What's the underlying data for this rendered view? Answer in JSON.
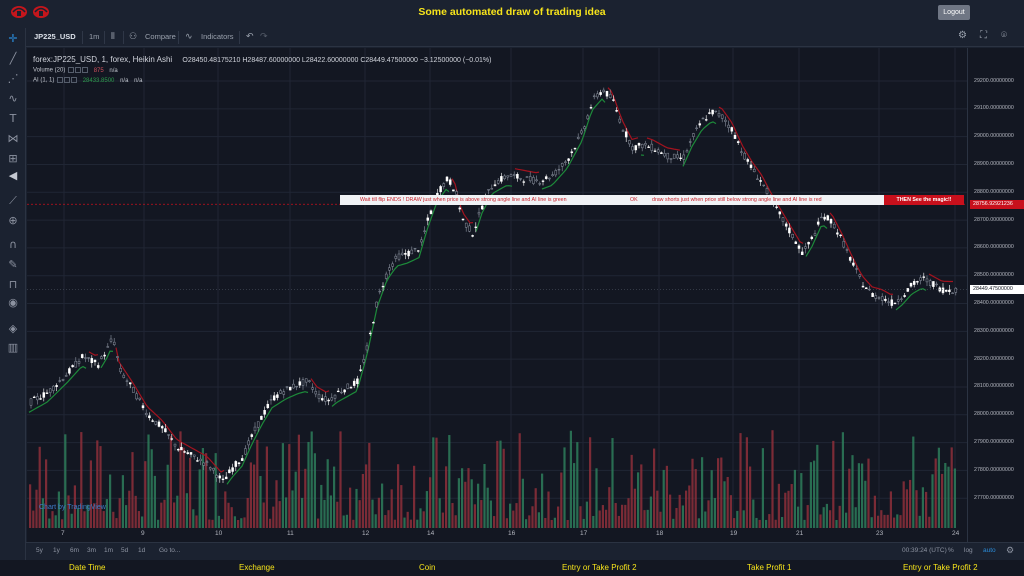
{
  "page": {
    "title": "Some automated draw of trading idea",
    "logout_label": "Logout",
    "logo_icons": [
      "red-emblem-icon",
      "red-emblem-icon"
    ]
  },
  "left_tools": [
    "crosshair-icon",
    "trend-line-icon",
    "fib-icon",
    "brush-icon",
    "text-icon",
    "pattern-icon",
    "measure-icon",
    "arrow-left-icon",
    "ruler-icon",
    "zoom-in-icon",
    "magnet-icon",
    "lock-drawing-icon",
    "unlock-icon",
    "eye-icon",
    "layers-icon",
    "trash-icon"
  ],
  "toolbar": {
    "symbol": "JP225_USD",
    "interval": "1m",
    "compare_label": "Compare",
    "indicators_label": "Indicators",
    "icons": [
      "candles-icon",
      "compare-icon",
      "indicators-icon",
      "undo-icon",
      "redo-icon",
      "settings-icon",
      "fullscreen-icon",
      "camera-icon"
    ]
  },
  "legend": {
    "title": "forex:JP225_USD, 1, forex, Heikin Ashi",
    "ohlc": "O28450.48175210  H28487.60000000  L28422.60000000  C28449.47500000  −3.12500000 (−0.01%)",
    "volume_label": "Volume (20)",
    "volume_value": "875",
    "volume_na": "n/a",
    "ai_label": "AI (1, 1)",
    "ai_value": "28433.8500",
    "ai_na1": "n/a",
    "ai_na2": "n/a"
  },
  "banner": {
    "part1": "Wait till flip ENDS  !   DRAW just when price is above strong angle line and AI line is green",
    "part2": "OK",
    "part3": "draw shorts just when price still below strong angle line and AI line is red",
    "cta": "THEN See the magic!!"
  },
  "price_scale": {
    "labels": [
      "29200.00000000",
      "29100.00000000",
      "29000.00000000",
      "28900.00000000",
      "28800.00000000",
      "28700.00000000",
      "28600.00000000",
      "28500.00000000",
      "28400.00000000",
      "28300.00000000",
      "28200.00000000",
      "28100.00000000",
      "28000.00000000",
      "27900.00000000",
      "27800.00000000",
      "27700.00000000"
    ],
    "level_tag": "28756.92921236",
    "last_price_tag": "28449.47500000"
  },
  "time_scale": {
    "labels": [
      "7",
      "9",
      "10",
      "11",
      "12",
      "14",
      "16",
      "17",
      "18",
      "19",
      "21",
      "23",
      "24"
    ]
  },
  "watermark": "Chart by TradingView",
  "range_bar": {
    "ranges": [
      "5y",
      "1y",
      "6m",
      "3m",
      "1m",
      "5d",
      "1d"
    ],
    "goto_label": "Go to...",
    "clock": "00:39:24 (UTC)",
    "percent_label": "%",
    "log_label": "log",
    "auto_label": "auto"
  },
  "columns": [
    "Date Time",
    "Exchange",
    "Coin",
    "Entry or Take Profit 2",
    "Take Profit 1",
    "Entry or Take Profit 2"
  ],
  "colors": {
    "up": "#ffffff",
    "down": "#8c93a0",
    "ai_green": "#1d8a3a",
    "ai_red": "#a3131f",
    "vol_up": "#2e7d5b",
    "vol_down": "#8e2f3a",
    "accent_yellow": "#f7e41b"
  },
  "chart_data": {
    "type": "candlestick",
    "y_range": [
      27600,
      29290
    ],
    "level": 28756.92921236,
    "last_price": 28449.475,
    "price_path": [
      [
        0,
        28040
      ],
      [
        20,
        28080
      ],
      [
        40,
        28150
      ],
      [
        55,
        28210
      ],
      [
        70,
        28180
      ],
      [
        80,
        28240
      ],
      [
        85,
        28280
      ],
      [
        92,
        28160
      ],
      [
        105,
        28090
      ],
      [
        120,
        28000
      ],
      [
        135,
        27950
      ],
      [
        150,
        27880
      ],
      [
        165,
        27850
      ],
      [
        180,
        27820
      ],
      [
        195,
        27760
      ],
      [
        205,
        27810
      ],
      [
        215,
        27850
      ],
      [
        225,
        27930
      ],
      [
        235,
        28000
      ],
      [
        245,
        28060
      ],
      [
        258,
        28090
      ],
      [
        270,
        28110
      ],
      [
        280,
        28120
      ],
      [
        290,
        28070
      ],
      [
        300,
        28050
      ],
      [
        310,
        28080
      ],
      [
        320,
        28100
      ],
      [
        330,
        28120
      ],
      [
        340,
        28250
      ],
      [
        350,
        28420
      ],
      [
        360,
        28520
      ],
      [
        370,
        28570
      ],
      [
        380,
        28580
      ],
      [
        392,
        28600
      ],
      [
        400,
        28700
      ],
      [
        410,
        28800
      ],
      [
        420,
        28850
      ],
      [
        428,
        28800
      ],
      [
        435,
        28700
      ],
      [
        445,
        28650
      ],
      [
        455,
        28760
      ],
      [
        465,
        28830
      ],
      [
        480,
        28860
      ],
      [
        495,
        28850
      ],
      [
        510,
        28840
      ],
      [
        525,
        28860
      ],
      [
        540,
        28920
      ],
      [
        555,
        29020
      ],
      [
        565,
        29130
      ],
      [
        575,
        29170
      ],
      [
        585,
        29130
      ],
      [
        595,
        29030
      ],
      [
        605,
        28960
      ],
      [
        615,
        28970
      ],
      [
        625,
        28960
      ],
      [
        640,
        28930
      ],
      [
        655,
        28920
      ],
      [
        665,
        29000
      ],
      [
        675,
        29060
      ],
      [
        685,
        29090
      ],
      [
        695,
        29070
      ],
      [
        705,
        29020
      ],
      [
        715,
        28940
      ],
      [
        725,
        28880
      ],
      [
        735,
        28830
      ],
      [
        745,
        28760
      ],
      [
        755,
        28700
      ],
      [
        765,
        28640
      ],
      [
        775,
        28580
      ],
      [
        785,
        28640
      ],
      [
        795,
        28720
      ],
      [
        805,
        28690
      ],
      [
        815,
        28620
      ],
      [
        825,
        28540
      ],
      [
        835,
        28470
      ],
      [
        845,
        28430
      ],
      [
        855,
        28420
      ],
      [
        865,
        28400
      ],
      [
        875,
        28430
      ],
      [
        885,
        28470
      ],
      [
        895,
        28490
      ],
      [
        905,
        28470
      ],
      [
        915,
        28450
      ],
      [
        925,
        28449
      ]
    ]
  }
}
